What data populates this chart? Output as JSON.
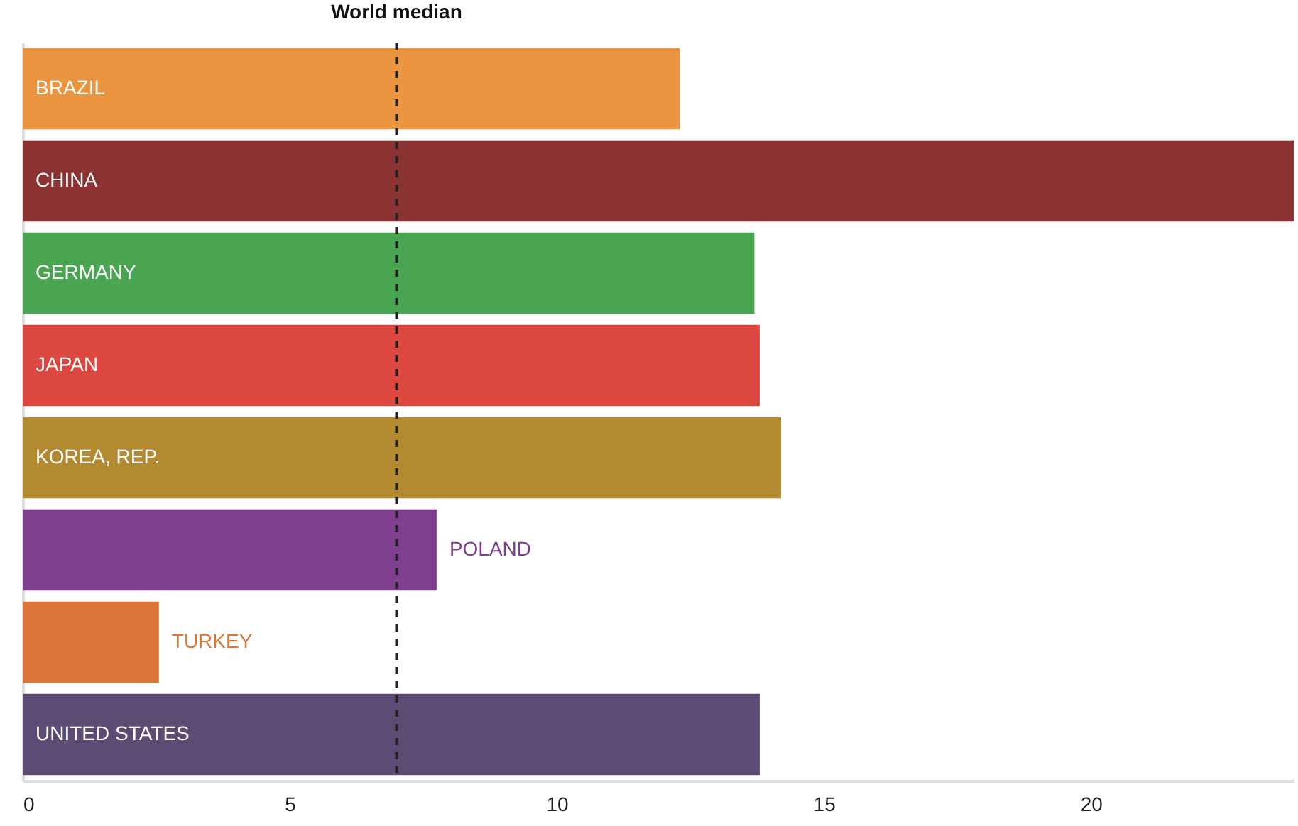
{
  "chart_data": {
    "type": "bar",
    "orientation": "horizontal",
    "categories": [
      "BRAZIL",
      "CHINA",
      "GERMANY",
      "JAPAN",
      "KOREA, REP.",
      "POLAND",
      "TURKEY",
      "UNITED STATES"
    ],
    "values": [
      12.3,
      23.8,
      13.7,
      13.8,
      14.2,
      7.75,
      2.55,
      13.8
    ],
    "colors": [
      "#eb9540",
      "#8b3232",
      "#4aa553",
      "#dc4740",
      "#b38a30",
      "#7d3f8e",
      "#dc7538",
      "#5c4b72"
    ],
    "xlim": [
      0,
      23.8
    ],
    "xticks": [
      0,
      5,
      10,
      15,
      20
    ],
    "ref_lines": [
      {
        "axis": "x",
        "value": 7,
        "label": "World median",
        "color": "#222222",
        "line_style": "dashed"
      }
    ],
    "tick_labels": "x",
    "grid": false
  }
}
